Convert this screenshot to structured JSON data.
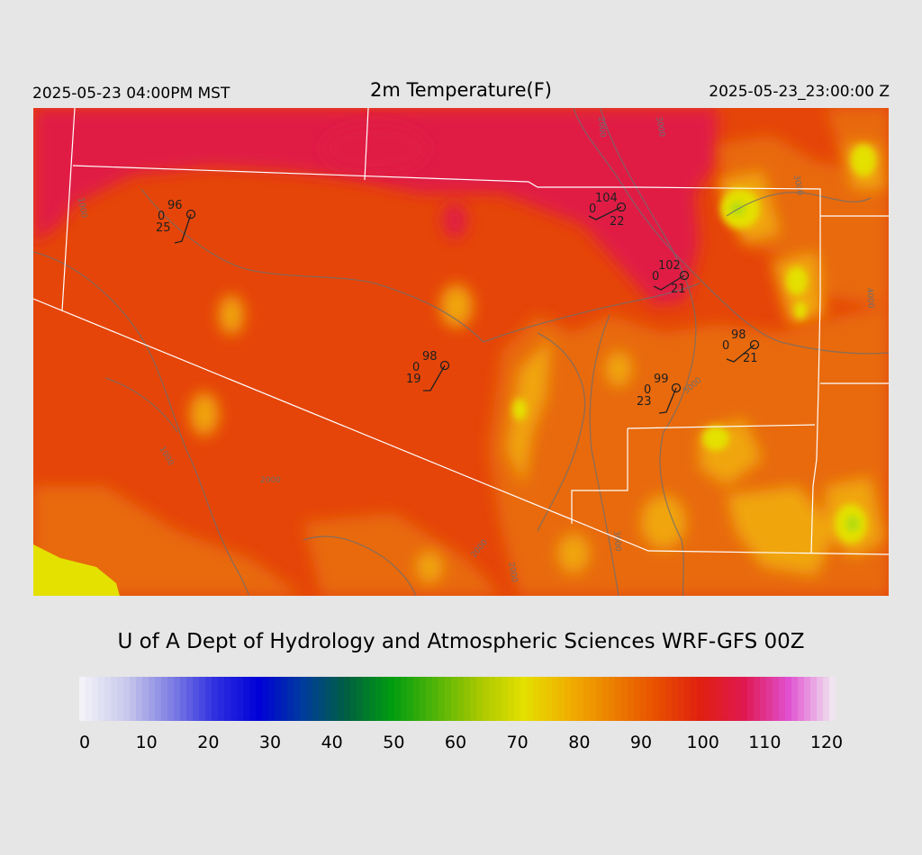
{
  "header": {
    "left": "2025-05-23 04:00PM MST",
    "title": "2m Temperature(F)",
    "right": "2025-05-23_23:00:00 Z"
  },
  "credit": "U of A Dept of Hydrology and Atmospheric Sciences WRF-GFS 00Z",
  "colorbar": {
    "ticks": [
      "0",
      "10",
      "20",
      "30",
      "40",
      "50",
      "60",
      "70",
      "80",
      "90",
      "100",
      "110",
      "120"
    ],
    "stops": [
      "#f2f2f8",
      "#c8c8ec",
      "#8080e4",
      "#3030e0",
      "#0000d8",
      "#003c9c",
      "#006040",
      "#009c10",
      "#50b408",
      "#a8c800",
      "#e4e000",
      "#f0b000",
      "#ec8000",
      "#e85000",
      "#e02010",
      "#e01850",
      "#e050d0",
      "#f0e4f0"
    ]
  },
  "map": {
    "colors": {
      "base": "#e54508",
      "hot": "#e01f45",
      "warm": "#e86a0a",
      "cool": "#f0a510",
      "yellow": "#e4e000",
      "lime": "#c8e010",
      "border": "#ffffff",
      "contour": "#6e6e6e"
    },
    "contour_labels": [
      "1000",
      "1000",
      "1000",
      "2000",
      "2000",
      "2000",
      "2000",
      "3000",
      "3000",
      "3000",
      "4000",
      "4000",
      "3000",
      "1000",
      "2000"
    ],
    "stations": [
      {
        "temp": "96",
        "dewpt": "0",
        "wind": "25"
      },
      {
        "temp": "104",
        "dewpt": "0",
        "wind": "22"
      },
      {
        "temp": "102",
        "dewpt": "0",
        "wind": "21"
      },
      {
        "temp": "98",
        "dewpt": "0",
        "wind": "21"
      },
      {
        "temp": "98",
        "dewpt": "0",
        "wind": "19"
      },
      {
        "temp": "99",
        "dewpt": "0",
        "wind": "23"
      }
    ]
  }
}
